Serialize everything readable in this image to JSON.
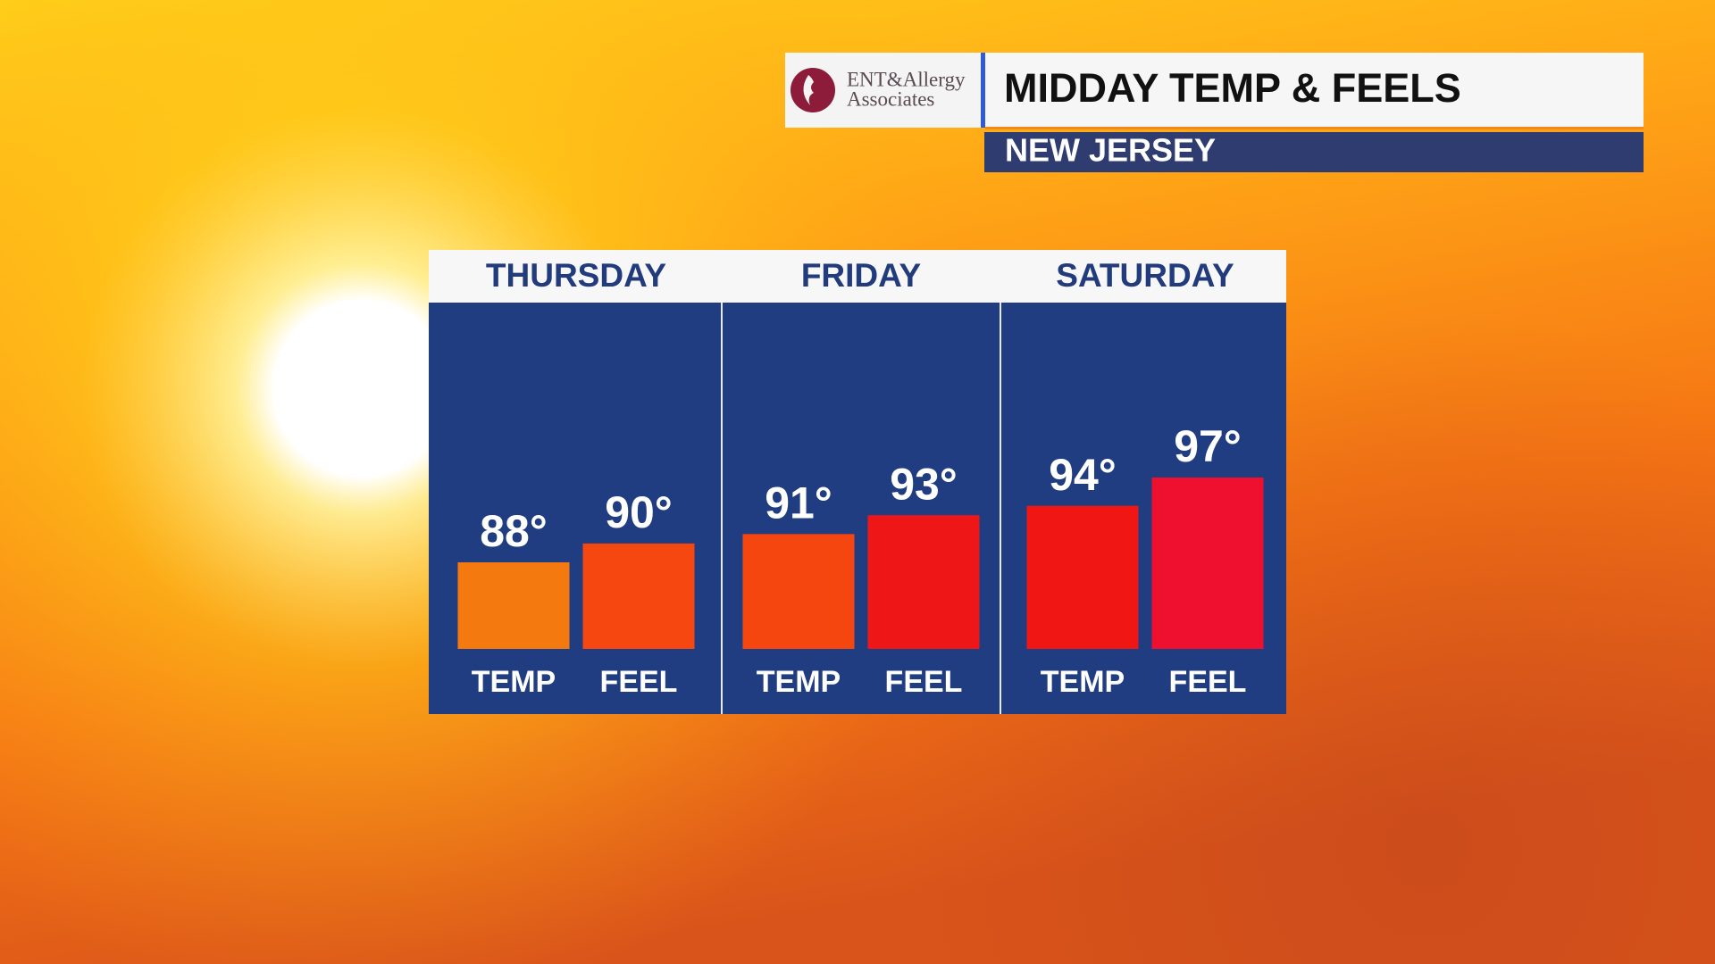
{
  "chart_data": {
    "type": "bar",
    "title": "MIDDAY TEMP & FEELS",
    "subtitle": "NEW JERSEY",
    "sponsor": [
      "ENT&Allergy",
      "Associates"
    ],
    "categories": [
      "THURSDAY",
      "FRIDAY",
      "SATURDAY"
    ],
    "series": [
      {
        "name": "TEMP",
        "colors": [
          "#f47a10",
          "#f5460f",
          "#ef1613"
        ],
        "values": [
          88,
          91,
          94
        ],
        "value_labels": [
          "88°",
          "91°",
          "94°"
        ]
      },
      {
        "name": "FEEL",
        "colors": [
          "#f5470f",
          "#ee1616",
          "#ef1030"
        ],
        "values": [
          90,
          93,
          97
        ],
        "value_labels": [
          "90°",
          "93°",
          "97°"
        ]
      }
    ]
  }
}
